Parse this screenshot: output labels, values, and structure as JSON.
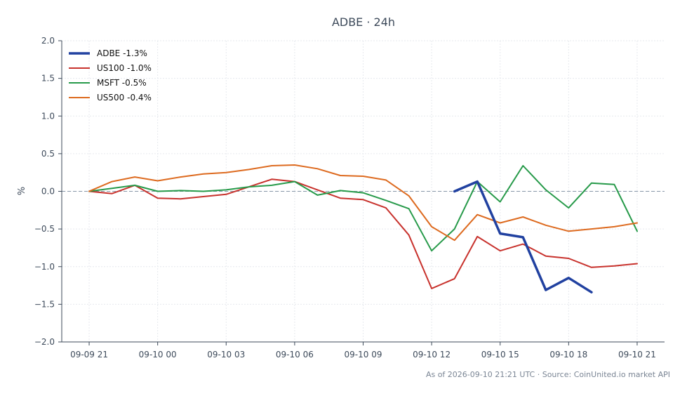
{
  "chart_data": {
    "type": "line",
    "title": "ADBE · 24h",
    "ylabel": "%",
    "xlabel": "",
    "ylim": [
      -2.0,
      2.0
    ],
    "y_ticks": [
      -2.0,
      -1.5,
      -1.0,
      -0.5,
      0.0,
      0.5,
      1.0,
      1.5,
      2.0
    ],
    "y_tick_labels": [
      "−2.0",
      "−1.5",
      "−1.0",
      "−0.5",
      "0.0",
      "0.5",
      "1.0",
      "1.5",
      "2.0"
    ],
    "x_ticks": [
      "09-09 21",
      "09-10 00",
      "09-10 03",
      "09-10 06",
      "09-10 09",
      "09-10 12",
      "09-10 15",
      "09-10 18",
      "09-10 21"
    ],
    "x_tick_hours": [
      0,
      3,
      6,
      9,
      12,
      15,
      18,
      21,
      24
    ],
    "xlim_hours": [
      -1.2,
      25.2
    ],
    "grid": true,
    "reference_line": 0,
    "legend_position": "top-left",
    "series": [
      {
        "name": "ADBE -1.3%",
        "color": "#2141a0",
        "emphasis": true,
        "x_hours": [
          16,
          17,
          18,
          19,
          20,
          21,
          22
        ],
        "values": [
          0.0,
          0.13,
          -0.56,
          -0.61,
          -1.31,
          -1.15,
          -1.34
        ]
      },
      {
        "name": "US100 -1.0%",
        "color": "#c8322d",
        "x_hours": [
          0,
          1,
          2,
          3,
          4,
          5,
          6,
          7,
          8,
          9,
          10,
          11,
          12,
          13,
          14,
          15,
          16,
          17,
          18,
          19,
          20,
          21,
          22,
          23,
          24
        ],
        "values": [
          0.0,
          -0.03,
          0.08,
          -0.09,
          -0.1,
          -0.07,
          -0.04,
          0.06,
          0.16,
          0.13,
          0.02,
          -0.09,
          -0.11,
          -0.22,
          -0.58,
          -1.29,
          -1.16,
          -0.6,
          -0.79,
          -0.7,
          -0.86,
          -0.89,
          -1.01,
          -0.99,
          -0.96
        ]
      },
      {
        "name": "MSFT -0.5%",
        "color": "#279a4a",
        "x_hours": [
          0,
          1,
          2,
          3,
          4,
          5,
          6,
          7,
          8,
          9,
          10,
          11,
          12,
          13,
          14,
          15,
          16,
          17,
          18,
          19,
          20,
          21,
          22,
          23,
          24
        ],
        "values": [
          0.0,
          0.04,
          0.08,
          0.0,
          0.01,
          0.0,
          0.02,
          0.06,
          0.08,
          0.13,
          -0.05,
          0.01,
          -0.02,
          -0.12,
          -0.23,
          -0.79,
          -0.5,
          0.13,
          -0.14,
          0.34,
          0.02,
          -0.22,
          0.11,
          0.09,
          -0.53
        ]
      },
      {
        "name": "US500 -0.4%",
        "color": "#dd6a1f",
        "x_hours": [
          0,
          1,
          2,
          3,
          4,
          5,
          6,
          7,
          8,
          9,
          10,
          11,
          12,
          13,
          14,
          15,
          16,
          17,
          18,
          19,
          20,
          21,
          22,
          23,
          24
        ],
        "values": [
          0.0,
          0.13,
          0.19,
          0.14,
          0.19,
          0.23,
          0.25,
          0.29,
          0.34,
          0.35,
          0.3,
          0.21,
          0.2,
          0.15,
          -0.06,
          -0.47,
          -0.65,
          -0.31,
          -0.42,
          -0.34,
          -0.45,
          -0.53,
          -0.5,
          -0.47,
          -0.42
        ]
      }
    ],
    "footer": "As of 2026-09-10 21:21 UTC · Source: CoinUnited.io market API"
  }
}
